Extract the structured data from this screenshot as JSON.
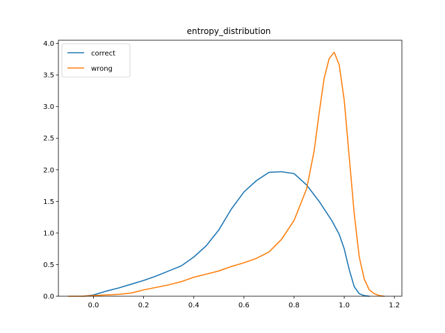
{
  "chart_data": {
    "type": "line",
    "title": "entropy_distribution",
    "xlabel": "",
    "ylabel": "",
    "xlim": [
      -0.14,
      1.23
    ],
    "ylim": [
      0,
      4.05
    ],
    "xticks": [
      0.0,
      0.2,
      0.4,
      0.6,
      0.8,
      1.0,
      1.2
    ],
    "xtick_labels": [
      "0.0",
      "0.2",
      "0.4",
      "0.6",
      "0.8",
      "1.0",
      "1.2"
    ],
    "yticks": [
      0.0,
      0.5,
      1.0,
      1.5,
      2.0,
      2.5,
      3.0,
      3.5,
      4.0
    ],
    "ytick_labels": [
      "0.0",
      "0.5",
      "1.0",
      "1.5",
      "2.0",
      "2.5",
      "3.0",
      "3.5",
      "4.0"
    ],
    "grid": false,
    "legend_position": "top-left",
    "series": [
      {
        "name": "correct",
        "color": "#1f77b4",
        "x": [
          -0.04,
          0.0,
          0.05,
          0.1,
          0.15,
          0.2,
          0.25,
          0.3,
          0.35,
          0.4,
          0.45,
          0.5,
          0.55,
          0.6,
          0.65,
          0.7,
          0.75,
          0.8,
          0.85,
          0.9,
          0.95,
          0.98,
          1.0,
          1.02,
          1.04,
          1.06,
          1.08,
          1.1
        ],
        "y": [
          0.0,
          0.02,
          0.08,
          0.13,
          0.19,
          0.25,
          0.32,
          0.4,
          0.48,
          0.62,
          0.8,
          1.05,
          1.38,
          1.65,
          1.83,
          1.96,
          1.97,
          1.94,
          1.76,
          1.5,
          1.2,
          0.98,
          0.75,
          0.42,
          0.15,
          0.04,
          0.01,
          0.0
        ]
      },
      {
        "name": "wrong",
        "color": "#ff7f0e",
        "x": [
          -0.1,
          -0.05,
          0.0,
          0.05,
          0.1,
          0.15,
          0.2,
          0.25,
          0.3,
          0.35,
          0.4,
          0.45,
          0.5,
          0.55,
          0.6,
          0.65,
          0.7,
          0.75,
          0.8,
          0.85,
          0.88,
          0.9,
          0.92,
          0.94,
          0.96,
          0.98,
          1.0,
          1.02,
          1.04,
          1.06,
          1.08,
          1.1,
          1.12,
          1.14,
          1.16
        ],
        "y": [
          0.0,
          0.0,
          0.01,
          0.02,
          0.03,
          0.05,
          0.1,
          0.14,
          0.18,
          0.23,
          0.3,
          0.35,
          0.4,
          0.47,
          0.53,
          0.6,
          0.7,
          0.9,
          1.2,
          1.7,
          2.3,
          2.9,
          3.45,
          3.76,
          3.86,
          3.66,
          3.1,
          2.2,
          1.3,
          0.62,
          0.27,
          0.1,
          0.04,
          0.01,
          0.0
        ]
      }
    ]
  }
}
